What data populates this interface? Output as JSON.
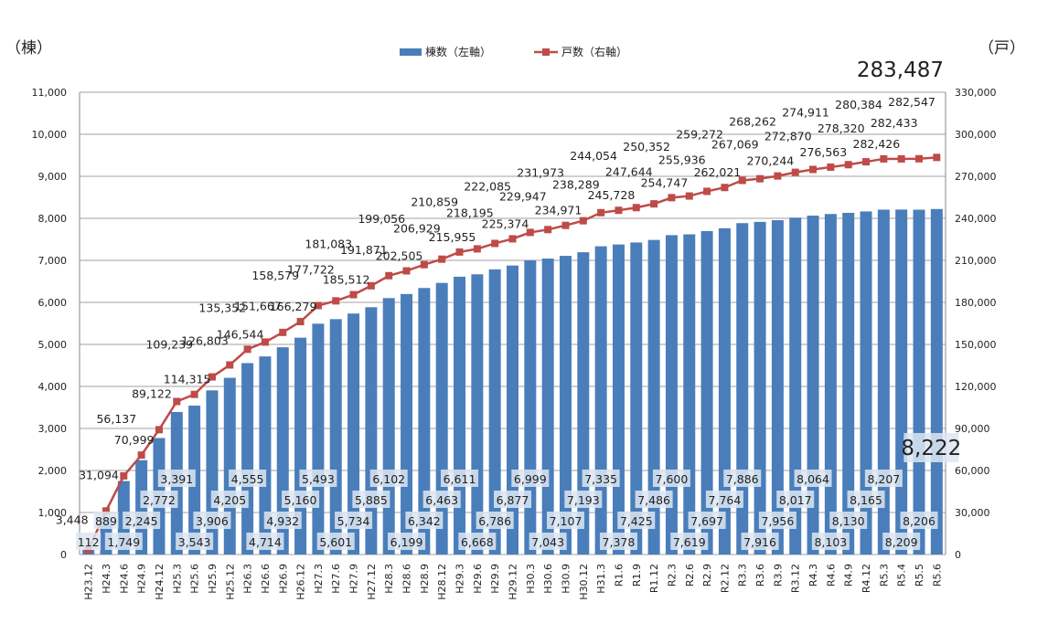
{
  "chart_data": {
    "type": "bar+line",
    "ylabel_left": "（棟）",
    "ylabel_right": "（戸）",
    "ylim_left": [
      0,
      11000
    ],
    "ylim_right": [
      0,
      330000
    ],
    "yticks_left": [
      "0",
      "1,000",
      "2,000",
      "3,000",
      "4,000",
      "5,000",
      "6,000",
      "7,000",
      "8,000",
      "9,000",
      "10,000",
      "11,000"
    ],
    "yticks_right": [
      "0",
      "30,000",
      "60,000",
      "90,000",
      "120,000",
      "150,000",
      "180,000",
      "210,000",
      "240,000",
      "270,000",
      "300,000",
      "330,000"
    ],
    "grid": true,
    "legend_position": "top",
    "categories": [
      "H23.12",
      "H24.3",
      "H24.6",
      "H24.9",
      "H24.12",
      "H25.3",
      "H25.6",
      "H25.9",
      "H25.12",
      "H26.3",
      "H26.6",
      "H26.9",
      "H26.12",
      "H27.3",
      "H27.6",
      "H27.9",
      "H27.12",
      "H28.3",
      "H28.6",
      "H28.9",
      "H28.12",
      "H29.3",
      "H29.6",
      "H29.9",
      "H29.12",
      "H30.3",
      "H30.6",
      "H30.9",
      "H30.12",
      "H31.3",
      "R1.6",
      "R1.9",
      "R1.12",
      "R2.3",
      "R2.6",
      "R2.9",
      "R2.12",
      "R3.3",
      "R3.6",
      "R3.9",
      "R3.12",
      "R4.3",
      "R4.6",
      "R4.9",
      "R4.12",
      "R5.3",
      "R5.4",
      "R5.5",
      "R5.6"
    ],
    "series": [
      {
        "name": "棟数（左軸）",
        "type": "bar",
        "axis": "left",
        "color": "#4a7ebb",
        "values": [
          112,
          889,
          1749,
          2245,
          2772,
          3391,
          3543,
          3906,
          4205,
          4555,
          4714,
          4932,
          5160,
          5493,
          5601,
          5734,
          5885,
          6102,
          6199,
          6342,
          6463,
          6611,
          6668,
          6786,
          6877,
          6999,
          7043,
          7107,
          7193,
          7335,
          7378,
          7425,
          7486,
          7600,
          7619,
          7697,
          7764,
          7886,
          7916,
          7956,
          8017,
          8064,
          8103,
          8130,
          8165,
          8207,
          8209,
          8206,
          8222
        ],
        "labels": [
          "112",
          "889",
          "1,749",
          "2,245",
          "2,772",
          "3,391",
          "3,543",
          "3,906",
          "4,205",
          "4,555",
          "4,714",
          "4,932",
          "5,160",
          "5,493",
          "5,601",
          "5,734",
          "5,885",
          "6,102",
          "6,199",
          "6,342",
          "6,463",
          "6,611",
          "6,668",
          "6,786",
          "6,877",
          "6,999",
          "7,043",
          "7,107",
          "7,193",
          "7,335",
          "7,378",
          "7,425",
          "7,486",
          "7,600",
          "7,619",
          "7,697",
          "7,764",
          "7,886",
          "7,916",
          "7,956",
          "8,017",
          "8,064",
          "8,103",
          "8,130",
          "8,165",
          "8,207",
          "8,209",
          "8,206",
          "8,222"
        ]
      },
      {
        "name": "戸数（右軸）",
        "type": "line",
        "axis": "right",
        "color": "#be4b48",
        "values": [
          3448,
          31094,
          56137,
          70999,
          89122,
          109239,
          114315,
          126803,
          135352,
          146544,
          151667,
          158579,
          166279,
          177722,
          181083,
          185512,
          191871,
          199056,
          202505,
          206929,
          210859,
          215955,
          218195,
          222085,
          225374,
          229947,
          231973,
          234971,
          238289,
          244054,
          245728,
          247644,
          250352,
          254747,
          255936,
          259272,
          262021,
          267069,
          268262,
          270244,
          272870,
          274911,
          276563,
          278320,
          280384,
          282426,
          282433,
          282547,
          283487
        ],
        "labels": [
          "3,448",
          "31,094",
          "56,137",
          "70,999",
          "89,122",
          "109,239",
          "114,315",
          "126,803",
          "135,352",
          "146,544",
          "151,667",
          "158,579",
          "166,279",
          "177,722",
          "181,083",
          "185,512",
          "191,871",
          "199,056",
          "202,505",
          "206,929",
          "210,859",
          "215,955",
          "218,195",
          "222,085",
          "225,374",
          "229,947",
          "231,973",
          "234,971",
          "238,289",
          "244,054",
          "245,728",
          "247,644",
          "250,352",
          "254,747",
          "255,936",
          "259,272",
          "262,021",
          "267,069",
          "268,262",
          "270,244",
          "272,870",
          "274,911",
          "276,563",
          "278,320",
          "280,384",
          "282,426",
          "282,433",
          "282,547",
          "283,487"
        ]
      }
    ]
  }
}
